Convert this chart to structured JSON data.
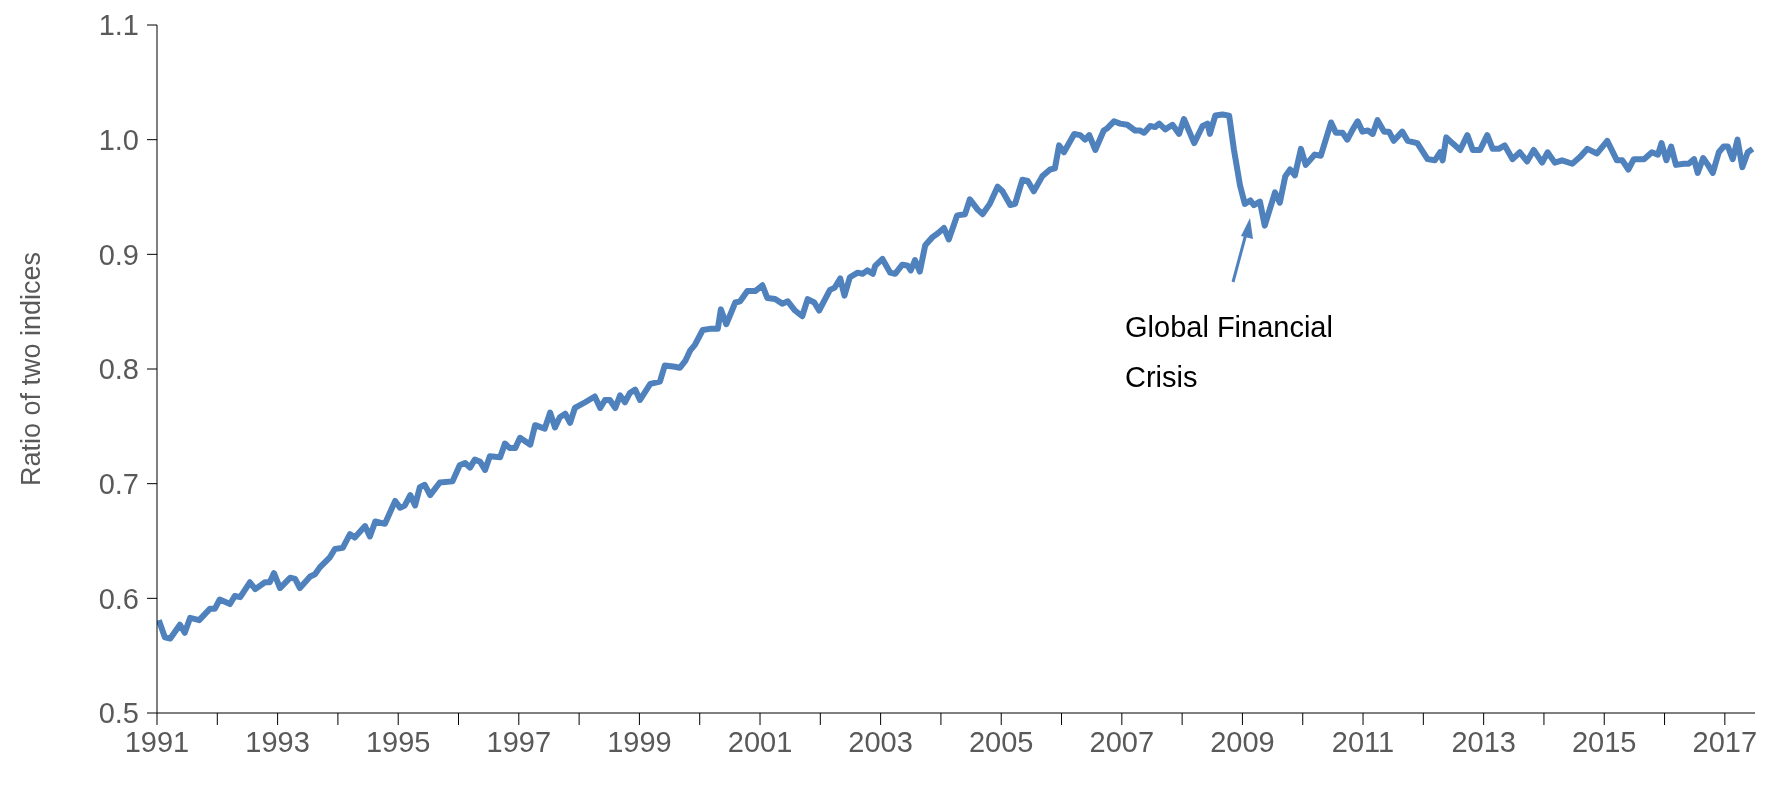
{
  "chart_data": {
    "type": "line",
    "ylabel": "Ratio of two indices",
    "annotations": [
      "Global Financial Crisis"
    ],
    "x": [
      1991.03,
      1991.13,
      1991.22,
      1991.38,
      1991.46,
      1991.55,
      1991.7,
      1991.88,
      1991.96,
      1992.04,
      1992.21,
      1992.29,
      1992.38,
      1992.54,
      1992.63,
      1992.79,
      1992.87,
      1992.94,
      1993.04,
      1993.21,
      1993.29,
      1993.37,
      1993.54,
      1993.62,
      1993.7,
      1993.87,
      1993.95,
      1994.08,
      1994.2,
      1994.28,
      1994.45,
      1994.53,
      1994.62,
      1994.78,
      1994.95,
      1995.03,
      1995.11,
      1995.2,
      1995.28,
      1995.36,
      1995.44,
      1995.53,
      1995.69,
      1995.9,
      1996.02,
      1996.11,
      1996.19,
      1996.27,
      1996.36,
      1996.44,
      1996.52,
      1996.69,
      1996.77,
      1996.85,
      1996.94,
      1997.02,
      1997.19,
      1997.27,
      1997.43,
      1997.52,
      1997.6,
      1997.68,
      1997.77,
      1997.85,
      1997.93,
      1998.1,
      1998.26,
      1998.35,
      1998.43,
      1998.51,
      1998.6,
      1998.68,
      1998.76,
      1998.84,
      1998.93,
      1999.01,
      1999.18,
      1999.34,
      1999.42,
      1999.59,
      1999.67,
      1999.76,
      1999.84,
      1999.92,
      2000.05,
      2000.17,
      2000.3,
      2000.35,
      2000.44,
      2000.59,
      2000.67,
      2000.79,
      2000.92,
      2001.04,
      2001.12,
      2001.25,
      2001.37,
      2001.46,
      2001.58,
      2001.7,
      2001.79,
      2001.9,
      2001.98,
      2002.16,
      2002.24,
      2002.33,
      2002.4,
      2002.49,
      2002.62,
      2002.7,
      2002.78,
      2002.87,
      2002.91,
      2003.03,
      2003.16,
      2003.24,
      2003.36,
      2003.45,
      2003.5,
      2003.57,
      2003.65,
      2003.74,
      2003.86,
      2003.94,
      2004.05,
      2004.13,
      2004.27,
      2004.4,
      2004.48,
      2004.61,
      2004.69,
      2004.81,
      2004.94,
      2005.02,
      2005.15,
      2005.23,
      2005.35,
      2005.44,
      2005.54,
      2005.68,
      2005.81,
      2005.89,
      2005.96,
      2006.04,
      2006.21,
      2006.31,
      2006.39,
      2006.46,
      2006.56,
      2006.7,
      2006.76,
      2006.87,
      2006.97,
      2007.09,
      2007.22,
      2007.3,
      2007.37,
      2007.47,
      2007.55,
      2007.62,
      2007.72,
      2007.84,
      2007.95,
      2008.03,
      2008.2,
      2008.34,
      2008.42,
      2008.46,
      2008.55,
      2008.67,
      2008.78,
      2008.86,
      2008.96,
      2009.04,
      2009.13,
      2009.19,
      2009.29,
      2009.37,
      2009.54,
      2009.62,
      2009.71,
      2009.79,
      2009.87,
      2009.97,
      2010.05,
      2010.2,
      2010.3,
      2010.47,
      2010.55,
      2010.66,
      2010.74,
      2010.83,
      2010.91,
      2010.99,
      2011.08,
      2011.16,
      2011.24,
      2011.35,
      2011.43,
      2011.51,
      2011.65,
      2011.74,
      2011.9,
      2012.07,
      2012.19,
      2012.28,
      2012.32,
      2012.38,
      2012.48,
      2012.61,
      2012.73,
      2012.82,
      2012.94,
      2013.06,
      2013.15,
      2013.25,
      2013.35,
      2013.48,
      2013.6,
      2013.72,
      2013.83,
      2013.97,
      2014.06,
      2014.18,
      2014.3,
      2014.47,
      2014.6,
      2014.72,
      2014.88,
      2015.05,
      2015.21,
      2015.3,
      2015.4,
      2015.49,
      2015.66,
      2015.79,
      2015.89,
      2015.95,
      2016.03,
      2016.11,
      2016.19,
      2016.32,
      2016.4,
      2016.49,
      2016.55,
      2016.64,
      2016.72,
      2016.8,
      2016.9,
      2016.98,
      2017.05,
      2017.13,
      2017.21,
      2017.29,
      2017.38,
      2017.46
    ],
    "series": [
      {
        "color": "#4f81bd",
        "values": [
          0.581,
          0.566,
          0.565,
          0.577,
          0.57,
          0.583,
          0.581,
          0.591,
          0.591,
          0.599,
          0.595,
          0.602,
          0.601,
          0.614,
          0.608,
          0.614,
          0.614,
          0.622,
          0.609,
          0.618,
          0.617,
          0.609,
          0.619,
          0.621,
          0.627,
          0.636,
          0.643,
          0.644,
          0.656,
          0.653,
          0.663,
          0.654,
          0.667,
          0.665,
          0.685,
          0.679,
          0.681,
          0.69,
          0.681,
          0.697,
          0.699,
          0.69,
          0.701,
          0.702,
          0.716,
          0.718,
          0.714,
          0.721,
          0.719,
          0.712,
          0.724,
          0.723,
          0.735,
          0.731,
          0.731,
          0.74,
          0.734,
          0.751,
          0.748,
          0.762,
          0.749,
          0.758,
          0.761,
          0.753,
          0.766,
          0.771,
          0.776,
          0.766,
          0.773,
          0.773,
          0.766,
          0.777,
          0.771,
          0.779,
          0.782,
          0.773,
          0.787,
          0.789,
          0.803,
          0.802,
          0.801,
          0.807,
          0.816,
          0.821,
          0.834,
          0.835,
          0.835,
          0.852,
          0.839,
          0.858,
          0.859,
          0.868,
          0.868,
          0.873,
          0.862,
          0.861,
          0.857,
          0.859,
          0.851,
          0.846,
          0.861,
          0.858,
          0.851,
          0.869,
          0.871,
          0.879,
          0.864,
          0.88,
          0.884,
          0.883,
          0.886,
          0.883,
          0.89,
          0.896,
          0.884,
          0.883,
          0.891,
          0.89,
          0.886,
          0.895,
          0.885,
          0.908,
          0.915,
          0.918,
          0.923,
          0.913,
          0.934,
          0.935,
          0.948,
          0.939,
          0.935,
          0.944,
          0.959,
          0.955,
          0.943,
          0.944,
          0.965,
          0.964,
          0.955,
          0.968,
          0.974,
          0.975,
          0.995,
          0.989,
          1.005,
          1.004,
          1.0,
          1.004,
          0.991,
          1.008,
          1.01,
          1.016,
          1.014,
          1.013,
          1.008,
          1.008,
          1.006,
          1.012,
          1.011,
          1.014,
          1.009,
          1.013,
          1.005,
          1.018,
          0.997,
          1.012,
          1.014,
          1.005,
          1.021,
          1.022,
          1.021,
          0.991,
          0.96,
          0.944,
          0.947,
          0.943,
          0.946,
          0.925,
          0.954,
          0.945,
          0.968,
          0.974,
          0.969,
          0.992,
          0.978,
          0.987,
          0.986,
          1.015,
          1.006,
          1.006,
          1.0,
          1.009,
          1.016,
          1.007,
          1.008,
          1.005,
          1.017,
          1.007,
          1.007,
          0.999,
          1.007,
          0.999,
          0.997,
          0.983,
          0.982,
          0.989,
          0.982,
          1.002,
          0.997,
          0.991,
          1.004,
          0.991,
          0.991,
          1.004,
          0.992,
          0.992,
          0.995,
          0.983,
          0.989,
          0.981,
          0.991,
          0.98,
          0.989,
          0.98,
          0.982,
          0.979,
          0.985,
          0.992,
          0.988,
          0.999,
          0.982,
          0.982,
          0.974,
          0.983,
          0.983,
          0.989,
          0.987,
          0.997,
          0.982,
          0.994,
          0.978,
          0.979,
          0.979,
          0.983,
          0.971,
          0.984,
          0.978,
          0.971,
          0.989,
          0.994,
          0.994,
          0.983,
          1.0,
          0.976,
          0.989,
          0.992
        ]
      }
    ],
    "xlim": [
      1991,
      2017.5
    ],
    "xticks": [
      1991,
      {
        "value": 1992,
        "label": null
      },
      1993,
      {
        "value": 1994,
        "label": null
      },
      1995,
      {
        "value": 1996,
        "label": null
      },
      1997,
      {
        "value": 1998,
        "label": null
      },
      1999,
      {
        "value": 2000,
        "label": null
      },
      2001,
      {
        "value": 2002,
        "label": null
      },
      2003,
      {
        "value": 2004,
        "label": null
      },
      2005,
      {
        "value": 2006,
        "label": null
      },
      2007,
      {
        "value": 2008,
        "label": null
      },
      2009,
      {
        "value": 2010,
        "label": null
      },
      2011,
      {
        "value": 2012,
        "label": null
      },
      2013,
      {
        "value": 2014,
        "label": null
      },
      2015,
      {
        "value": 2016,
        "label": null
      },
      2017
    ],
    "ylim": [
      0.5,
      1.1
    ],
    "yticks": [
      0.5,
      0.6,
      0.7,
      0.8,
      0.9,
      {
        "value": 1,
        "label": "1.0"
      },
      1.1
    ],
    "grid": false,
    "legend": false,
    "marker": "none",
    "line_style": "solid"
  }
}
